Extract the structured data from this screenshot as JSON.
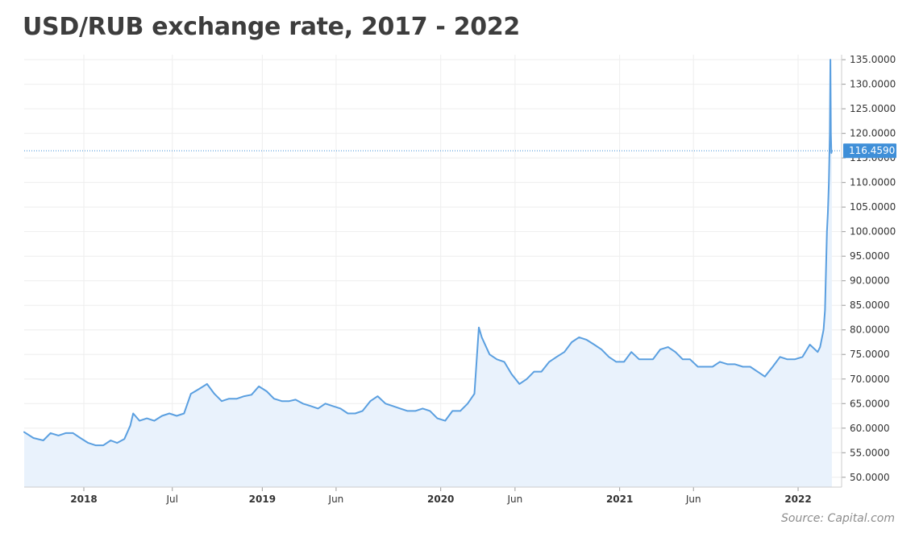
{
  "chart_data": {
    "type": "area",
    "title": "USD/RUB exchange rate, 2017 - 2022",
    "source": "Source: Capital.com",
    "x_range": [
      "2017-09-01",
      "2022-03-31"
    ],
    "x_ticks": [
      {
        "date": "2018-01-01",
        "label": "2018",
        "bold": true
      },
      {
        "date": "2018-07-01",
        "label": "Jul",
        "bold": false
      },
      {
        "date": "2019-01-01",
        "label": "2019",
        "bold": true
      },
      {
        "date": "2019-06-01",
        "label": "Jun",
        "bold": false
      },
      {
        "date": "2020-01-01",
        "label": "2020",
        "bold": true
      },
      {
        "date": "2020-06-01",
        "label": "Jun",
        "bold": false
      },
      {
        "date": "2021-01-01",
        "label": "2021",
        "bold": true
      },
      {
        "date": "2021-06-01",
        "label": "Jun",
        "bold": false
      },
      {
        "date": "2022-01-01",
        "label": "2022",
        "bold": true
      }
    ],
    "ylim": [
      48,
      136
    ],
    "y_ticks": [
      "50.0000",
      "55.0000",
      "60.0000",
      "65.0000",
      "70.0000",
      "75.0000",
      "80.0000",
      "85.0000",
      "90.0000",
      "95.0000",
      "100.0000",
      "105.0000",
      "110.0000",
      "115.0000",
      "120.0000",
      "125.0000",
      "130.0000",
      "135.0000"
    ],
    "y_axis_side": "right",
    "grid": true,
    "last_price": {
      "value": 116.459,
      "label": "116.4590"
    },
    "colors": {
      "line": "#5a9fe0",
      "fill": "#e9f2fc",
      "grid": "#eeeeee",
      "marker": "#3f8fd8",
      "axis_text": "#333333"
    },
    "series": [
      {
        "x": [
          "2017-09-01",
          "2017-09-20",
          "2017-10-10",
          "2017-10-25",
          "2017-11-10",
          "2017-11-25",
          "2017-12-10",
          "2017-12-25",
          "2018-01-10",
          "2018-01-25",
          "2018-02-10",
          "2018-02-25",
          "2018-03-10",
          "2018-03-25",
          "2018-04-06",
          "2018-04-12",
          "2018-04-25",
          "2018-05-10",
          "2018-05-25",
          "2018-06-10",
          "2018-06-25",
          "2018-07-10",
          "2018-07-25",
          "2018-08-08",
          "2018-08-25",
          "2018-09-10",
          "2018-09-25",
          "2018-10-10",
          "2018-10-25",
          "2018-11-10",
          "2018-11-25",
          "2018-12-10",
          "2018-12-25",
          "2019-01-10",
          "2019-01-25",
          "2019-02-10",
          "2019-02-25",
          "2019-03-10",
          "2019-03-25",
          "2019-04-10",
          "2019-04-25",
          "2019-05-10",
          "2019-05-25",
          "2019-06-10",
          "2019-06-25",
          "2019-07-10",
          "2019-07-25",
          "2019-08-10",
          "2019-08-25",
          "2019-09-10",
          "2019-09-25",
          "2019-10-10",
          "2019-10-25",
          "2019-11-10",
          "2019-11-25",
          "2019-12-10",
          "2019-12-25",
          "2020-01-10",
          "2020-01-25",
          "2020-02-10",
          "2020-02-25",
          "2020-03-10",
          "2020-03-19",
          "2020-03-25",
          "2020-04-10",
          "2020-04-25",
          "2020-05-10",
          "2020-05-25",
          "2020-06-10",
          "2020-06-25",
          "2020-07-10",
          "2020-07-25",
          "2020-08-10",
          "2020-08-25",
          "2020-09-10",
          "2020-09-25",
          "2020-10-10",
          "2020-10-25",
          "2020-11-10",
          "2020-11-25",
          "2020-12-10",
          "2020-12-25",
          "2021-01-10",
          "2021-01-25",
          "2021-02-10",
          "2021-02-25",
          "2021-03-10",
          "2021-03-25",
          "2021-04-10",
          "2021-04-25",
          "2021-05-10",
          "2021-05-25",
          "2021-06-10",
          "2021-06-25",
          "2021-07-10",
          "2021-07-25",
          "2021-08-10",
          "2021-08-25",
          "2021-09-10",
          "2021-09-25",
          "2021-10-10",
          "2021-10-25",
          "2021-11-10",
          "2021-11-25",
          "2021-12-10",
          "2021-12-25",
          "2022-01-10",
          "2022-01-25",
          "2022-02-10",
          "2022-02-15",
          "2022-02-22",
          "2022-02-25",
          "2022-03-01",
          "2022-03-03",
          "2022-03-05",
          "2022-03-07",
          "2022-03-08",
          "2022-03-09",
          "2022-03-10",
          "2022-03-11"
        ],
        "values": [
          59.2,
          58.0,
          57.5,
          59.0,
          58.5,
          59.0,
          59.0,
          58.0,
          57.0,
          56.5,
          56.5,
          57.5,
          57.0,
          57.8,
          60.5,
          63.0,
          61.5,
          62.0,
          61.5,
          62.5,
          63.0,
          62.5,
          63.0,
          67.0,
          68.0,
          69.0,
          67.0,
          65.5,
          66.0,
          66.0,
          66.5,
          66.8,
          68.5,
          67.5,
          66.0,
          65.5,
          65.5,
          65.8,
          65.0,
          64.5,
          64.0,
          65.0,
          64.5,
          64.0,
          63.0,
          63.0,
          63.5,
          65.5,
          66.5,
          65.0,
          64.5,
          64.0,
          63.5,
          63.5,
          64.0,
          63.5,
          62.0,
          61.5,
          63.5,
          63.5,
          65.0,
          67.0,
          80.5,
          78.5,
          75.0,
          74.0,
          73.5,
          71.0,
          69.0,
          70.0,
          71.5,
          71.5,
          73.5,
          74.5,
          75.5,
          77.5,
          78.5,
          78.0,
          77.0,
          76.0,
          74.5,
          73.5,
          73.5,
          75.5,
          74.0,
          74.0,
          74.0,
          76.0,
          76.5,
          75.5,
          74.0,
          74.0,
          72.5,
          72.5,
          72.5,
          73.5,
          73.0,
          73.0,
          72.5,
          72.5,
          71.5,
          70.5,
          72.5,
          74.5,
          74.0,
          74.0,
          74.5,
          77.0,
          75.5,
          76.5,
          80.0,
          84.0,
          100.0,
          104.0,
          110.0,
          120.0,
          135.0,
          120.0,
          116.0,
          116.459
        ]
      }
    ]
  }
}
